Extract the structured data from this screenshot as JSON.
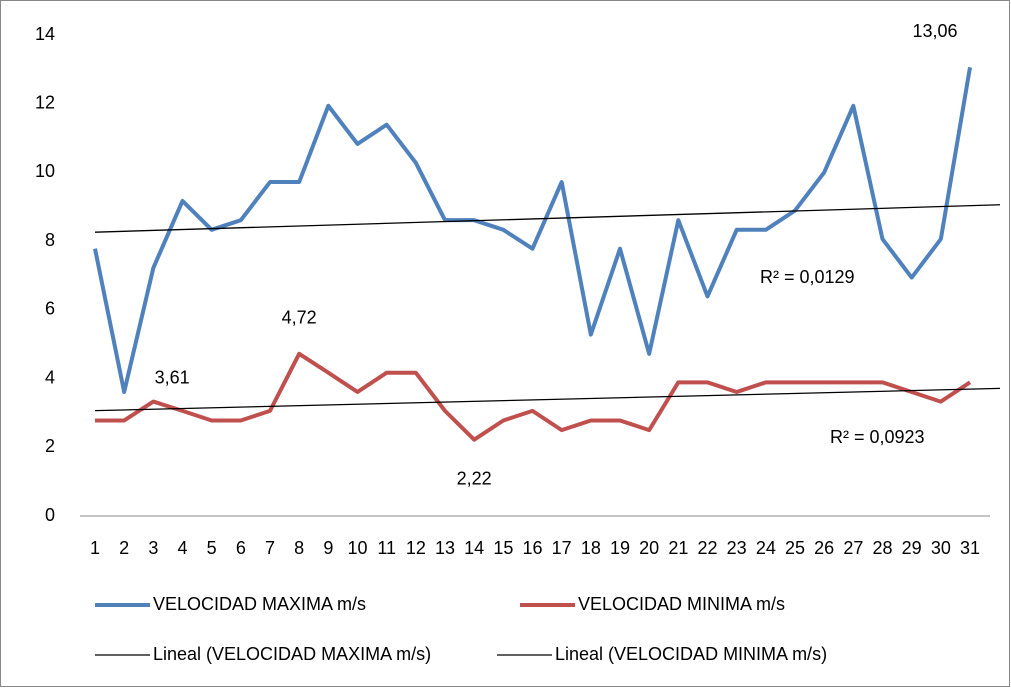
{
  "chart_data": {
    "type": "line",
    "categories": [
      "1",
      "2",
      "3",
      "4",
      "5",
      "6",
      "7",
      "8",
      "9",
      "10",
      "11",
      "12",
      "13",
      "14",
      "15",
      "16",
      "17",
      "18",
      "19",
      "20",
      "21",
      "22",
      "23",
      "24",
      "25",
      "26",
      "27",
      "28",
      "29",
      "30",
      "31"
    ],
    "series": [
      {
        "name": "VELOCIDAD MAXIMA m/s",
        "color": "#4f81bd",
        "values": [
          7.78,
          3.61,
          7.22,
          9.17,
          8.33,
          8.61,
          9.72,
          9.72,
          11.94,
          10.83,
          11.39,
          10.28,
          8.61,
          8.61,
          8.33,
          7.78,
          9.72,
          5.28,
          7.78,
          4.72,
          8.61,
          6.39,
          8.33,
          8.33,
          8.89,
          10,
          11.94,
          8.06,
          6.94,
          8.06,
          13.06
        ],
        "value_labels": [
          null,
          "3,61",
          null,
          null,
          null,
          null,
          null,
          null,
          null,
          null,
          null,
          null,
          null,
          null,
          null,
          null,
          null,
          null,
          null,
          null,
          null,
          null,
          null,
          null,
          null,
          null,
          null,
          null,
          null,
          null,
          "13,06"
        ]
      },
      {
        "name": "VELOCIDAD MINIMA m/s",
        "color": "#c0504d",
        "values": [
          2.78,
          2.78,
          3.33,
          3.06,
          2.78,
          2.78,
          3.06,
          4.72,
          4.17,
          3.61,
          4.17,
          4.17,
          3.06,
          2.22,
          2.78,
          3.06,
          2.5,
          2.78,
          2.78,
          2.5,
          3.89,
          3.89,
          3.61,
          3.89,
          3.89,
          3.89,
          3.89,
          3.89,
          3.61,
          3.33,
          3.89
        ],
        "value_labels": [
          null,
          null,
          null,
          null,
          null,
          null,
          null,
          "4,72",
          null,
          null,
          null,
          null,
          null,
          "2,22",
          null,
          null,
          null,
          null,
          null,
          null,
          null,
          null,
          null,
          null,
          null,
          null,
          null,
          null,
          null,
          null,
          null
        ]
      }
    ],
    "trendlines": [
      {
        "name": "Lineal (VELOCIDAD MAXIMA m/s)",
        "color": "#000000",
        "r2_label": "R² = 0,0129"
      },
      {
        "name": "Lineal (VELOCIDAD MINIMA m/s)",
        "color": "#000000",
        "r2_label": "R² = 0,0923"
      }
    ],
    "ylim": [
      0,
      14
    ],
    "yticks": [
      0,
      2,
      4,
      6,
      8,
      10,
      12,
      14
    ],
    "grid": false
  }
}
